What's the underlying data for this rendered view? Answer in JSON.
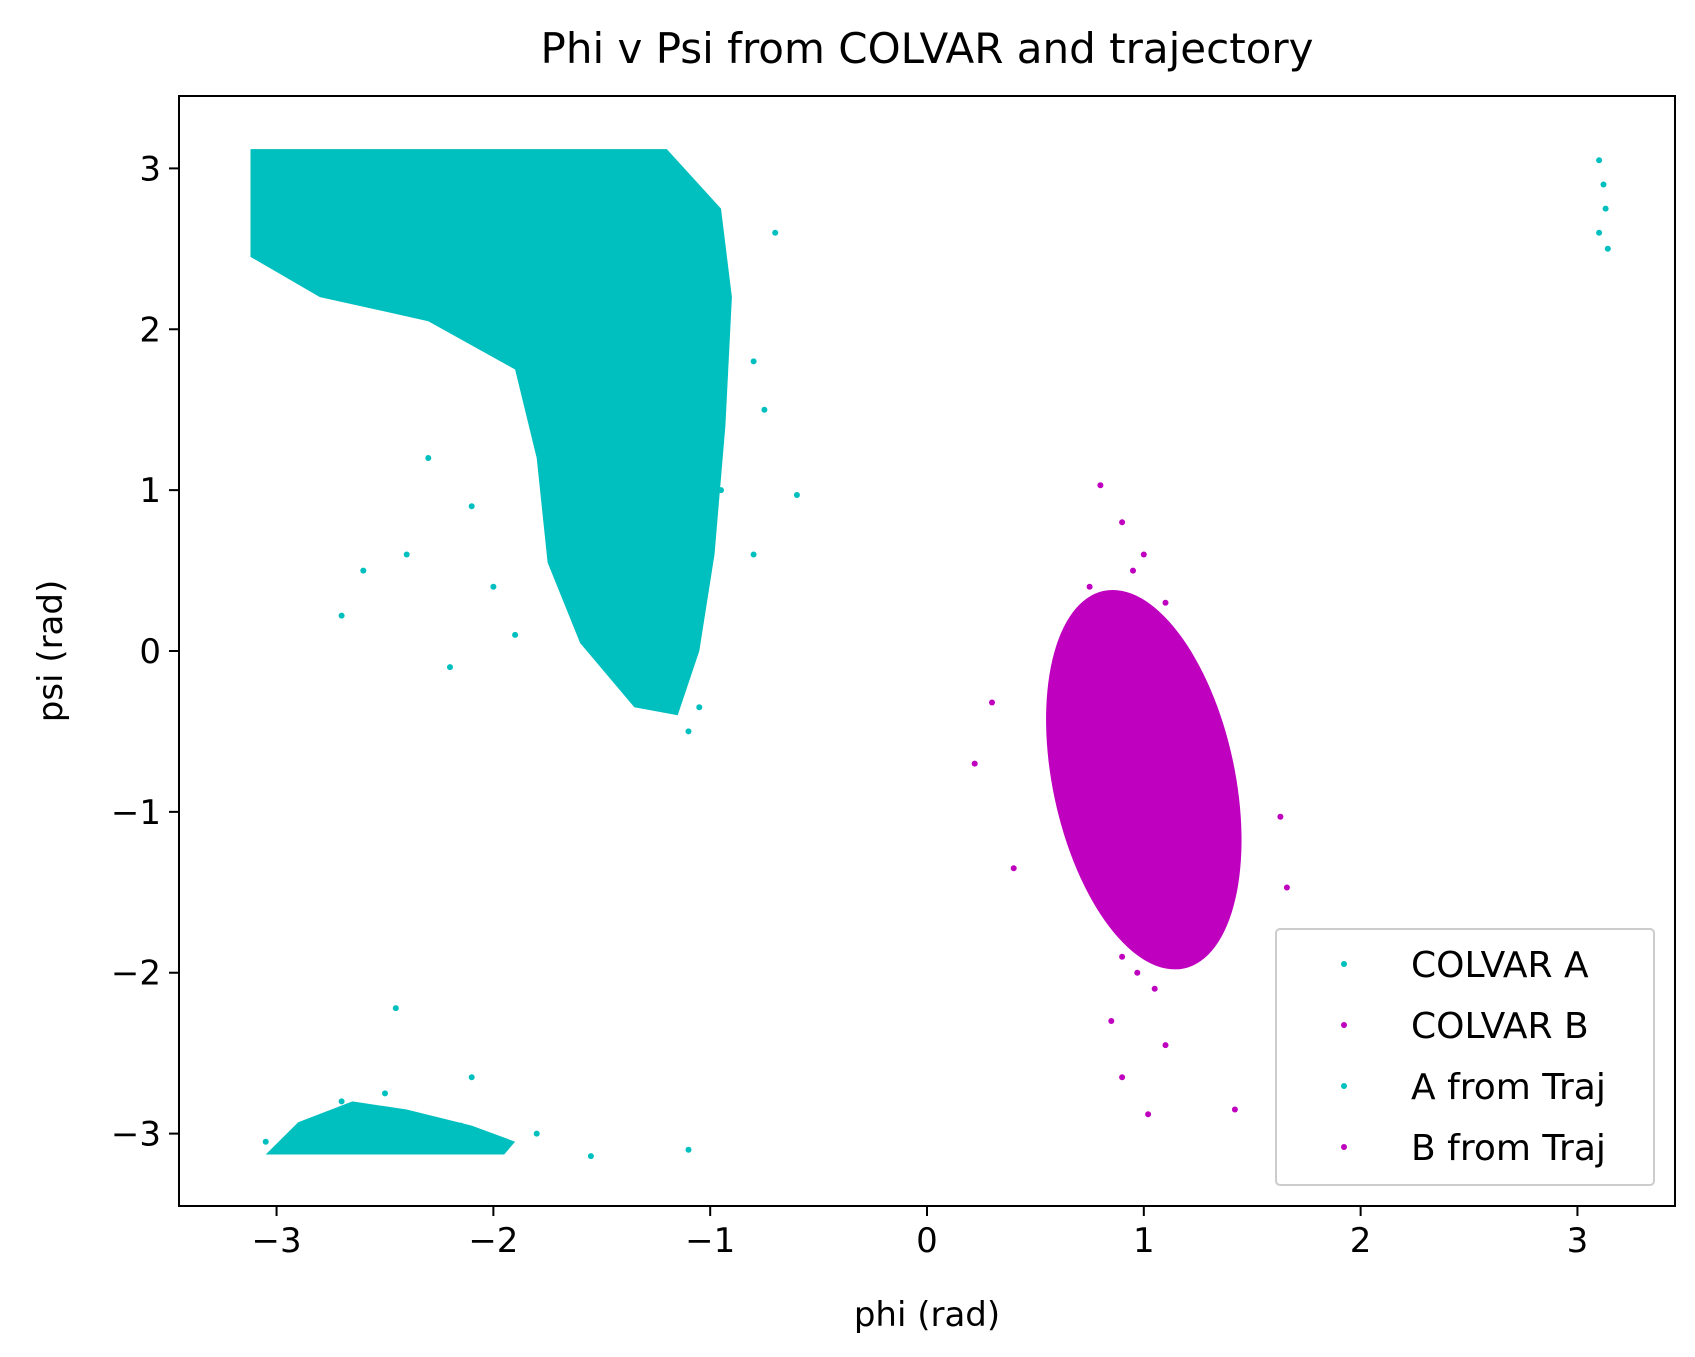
{
  "chart_data": {
    "type": "scatter",
    "title": "Phi v Psi from COLVAR and trajectory",
    "xlabel": "phi (rad)",
    "ylabel": "psi (rad)",
    "xlim": [
      -3.45,
      3.45
    ],
    "ylim": [
      -3.45,
      3.45
    ],
    "xticks": [
      {
        "value": -3,
        "label": "−3"
      },
      {
        "value": -2,
        "label": "−2"
      },
      {
        "value": -1,
        "label": "−1"
      },
      {
        "value": 0,
        "label": "0"
      },
      {
        "value": 1,
        "label": "1"
      },
      {
        "value": 2,
        "label": "2"
      },
      {
        "value": 3,
        "label": "3"
      }
    ],
    "yticks": [
      {
        "value": -3,
        "label": "−3"
      },
      {
        "value": -2,
        "label": "−2"
      },
      {
        "value": -1,
        "label": "−1"
      },
      {
        "value": 0,
        "label": "0"
      },
      {
        "value": 1,
        "label": "1"
      },
      {
        "value": 2,
        "label": "2"
      },
      {
        "value": 3,
        "label": "3"
      }
    ],
    "grid": false,
    "legend_position": "lower-right",
    "series": [
      {
        "name": "COLVAR A",
        "color": "#00bfbf",
        "points": [
          [
            -3.1,
            3.1
          ],
          [
            -2.9,
            3.05
          ],
          [
            -2.6,
            3.1
          ],
          [
            -2.3,
            3.05
          ],
          [
            -2.0,
            3.08
          ],
          [
            -1.7,
            3.05
          ],
          [
            -1.4,
            3.0
          ],
          [
            -3.05,
            2.7
          ],
          [
            -2.8,
            2.6
          ],
          [
            -2.5,
            2.5
          ],
          [
            -2.2,
            2.6
          ],
          [
            -1.9,
            2.5
          ],
          [
            -1.6,
            2.4
          ],
          [
            -1.3,
            2.3
          ],
          [
            -1.0,
            2.2
          ],
          [
            -2.9,
            2.3
          ],
          [
            -2.6,
            2.2
          ],
          [
            -2.3,
            2.1
          ],
          [
            -2.0,
            2.0
          ],
          [
            -1.7,
            1.9
          ],
          [
            -1.4,
            1.8
          ],
          [
            -1.1,
            1.6
          ],
          [
            -1.8,
            1.5
          ],
          [
            -1.5,
            1.3
          ],
          [
            -1.2,
            1.1
          ],
          [
            -0.95,
            1.0
          ],
          [
            -1.6,
            0.9
          ],
          [
            -1.35,
            0.7
          ],
          [
            -1.5,
            0.5
          ],
          [
            -1.25,
            0.3
          ],
          [
            -1.05,
            0.2
          ],
          [
            -1.4,
            0.1
          ],
          [
            -1.15,
            -0.1
          ],
          [
            -1.3,
            -0.3
          ],
          [
            -1.1,
            -0.5
          ],
          [
            -2.3,
            1.2
          ],
          [
            -2.1,
            0.9
          ],
          [
            -2.4,
            0.6
          ],
          [
            -2.0,
            0.4
          ],
          [
            -1.9,
            0.1
          ],
          [
            -2.6,
            0.5
          ],
          [
            -2.2,
            -0.1
          ],
          [
            -0.8,
            1.8
          ],
          [
            -0.75,
            1.5
          ],
          [
            -0.8,
            0.6
          ],
          [
            -0.6,
            0.97
          ],
          [
            -2.7,
            0.22
          ],
          [
            -0.7,
            2.6
          ],
          [
            -3.05,
            -3.05
          ],
          [
            -2.85,
            -2.95
          ],
          [
            -2.6,
            -3.0
          ],
          [
            -2.4,
            -3.1
          ],
          [
            -2.2,
            -3.05
          ],
          [
            -2.0,
            -3.1
          ],
          [
            -1.8,
            -3.0
          ],
          [
            -2.7,
            -2.8
          ],
          [
            -2.5,
            -2.75
          ],
          [
            -2.45,
            -2.22
          ],
          [
            -2.1,
            -2.65
          ],
          [
            -1.55,
            -3.14
          ],
          [
            -1.1,
            -3.1
          ],
          [
            3.1,
            3.05
          ],
          [
            3.12,
            2.9
          ],
          [
            3.13,
            2.75
          ],
          [
            3.1,
            2.6
          ],
          [
            3.14,
            2.5
          ]
        ]
      },
      {
        "name": "COLVAR B",
        "color": "#bf00bf",
        "points": [
          [
            0.8,
            1.03
          ],
          [
            0.9,
            0.8
          ],
          [
            1.0,
            0.6
          ],
          [
            0.75,
            0.4
          ],
          [
            1.1,
            0.3
          ],
          [
            0.7,
            0.0
          ],
          [
            1.2,
            -0.1
          ],
          [
            0.65,
            -0.4
          ],
          [
            1.3,
            -0.5
          ],
          [
            0.6,
            -0.8
          ],
          [
            1.4,
            -0.9
          ],
          [
            0.7,
            -1.2
          ],
          [
            1.35,
            -1.3
          ],
          [
            0.8,
            -1.6
          ],
          [
            1.2,
            -1.7
          ],
          [
            0.9,
            -1.9
          ],
          [
            1.05,
            -2.1
          ],
          [
            0.85,
            -2.3
          ],
          [
            1.1,
            -2.45
          ],
          [
            0.9,
            -2.65
          ],
          [
            1.02,
            -2.88
          ],
          [
            0.22,
            -0.7
          ],
          [
            0.3,
            -0.32
          ],
          [
            0.4,
            -1.35
          ],
          [
            1.63,
            -1.03
          ],
          [
            1.66,
            -1.47
          ],
          [
            1.42,
            -2.85
          ]
        ]
      },
      {
        "name": "A from Traj",
        "color": "#00bfbf",
        "points": [
          [
            -3.0,
            3.0
          ],
          [
            -2.7,
            2.9
          ],
          [
            -2.4,
            2.8
          ],
          [
            -2.1,
            2.75
          ],
          [
            -1.8,
            2.7
          ],
          [
            -1.5,
            2.6
          ],
          [
            -1.2,
            2.5
          ],
          [
            -2.95,
            2.45
          ],
          [
            -2.65,
            2.4
          ],
          [
            -2.35,
            2.35
          ],
          [
            -2.05,
            2.3
          ],
          [
            -1.75,
            2.2
          ],
          [
            -1.45,
            2.05
          ],
          [
            -1.15,
            1.9
          ],
          [
            -1.7,
            1.7
          ],
          [
            -1.45,
            1.5
          ],
          [
            -1.2,
            1.3
          ],
          [
            -1.55,
            1.1
          ],
          [
            -1.3,
            0.9
          ],
          [
            -1.45,
            0.65
          ],
          [
            -1.2,
            0.45
          ],
          [
            -1.35,
            0.25
          ],
          [
            -1.15,
            0.05
          ],
          [
            -1.25,
            -0.2
          ],
          [
            -1.05,
            -0.35
          ],
          [
            -2.95,
            -3.1
          ],
          [
            -2.75,
            -3.0
          ],
          [
            -2.55,
            -2.9
          ],
          [
            -2.35,
            -3.0
          ],
          [
            -2.15,
            -2.95
          ],
          [
            -1.95,
            -3.05
          ]
        ]
      },
      {
        "name": "B from Traj",
        "color": "#bf00bf",
        "points": [
          [
            0.95,
            0.5
          ],
          [
            0.85,
            0.3
          ],
          [
            1.05,
            0.1
          ],
          [
            0.75,
            -0.2
          ],
          [
            1.15,
            -0.3
          ],
          [
            0.7,
            -0.6
          ],
          [
            1.25,
            -0.7
          ],
          [
            0.72,
            -1.0
          ],
          [
            1.3,
            -1.1
          ],
          [
            0.78,
            -1.4
          ],
          [
            1.25,
            -1.5
          ],
          [
            0.88,
            -1.75
          ],
          [
            1.1,
            -1.85
          ],
          [
            0.97,
            -2.0
          ]
        ]
      }
    ],
    "density_regions": [
      {
        "series": "A",
        "color": "#00bfbf",
        "polygon": [
          [
            -3.12,
            3.12
          ],
          [
            -1.2,
            3.12
          ],
          [
            -0.95,
            2.75
          ],
          [
            -0.9,
            2.2
          ],
          [
            -0.93,
            1.4
          ],
          [
            -0.98,
            0.6
          ],
          [
            -1.05,
            0.0
          ],
          [
            -1.15,
            -0.4
          ],
          [
            -1.35,
            -0.35
          ],
          [
            -1.6,
            0.05
          ],
          [
            -1.75,
            0.55
          ],
          [
            -1.8,
            1.2
          ],
          [
            -1.9,
            1.75
          ],
          [
            -2.3,
            2.05
          ],
          [
            -2.8,
            2.2
          ],
          [
            -3.12,
            2.45
          ]
        ]
      },
      {
        "series": "A",
        "color": "#00bfbf",
        "polygon": [
          [
            -3.05,
            -3.13
          ],
          [
            -2.9,
            -2.93
          ],
          [
            -2.65,
            -2.8
          ],
          [
            -2.4,
            -2.85
          ],
          [
            -2.1,
            -2.95
          ],
          [
            -1.9,
            -3.05
          ],
          [
            -1.95,
            -3.13
          ]
        ]
      },
      {
        "series": "B",
        "color": "#bf00bf",
        "ellipse": {
          "cx": 1.0,
          "cy": -0.8,
          "rx": 0.42,
          "ry": 1.2,
          "rotate_deg": -12
        }
      }
    ]
  }
}
